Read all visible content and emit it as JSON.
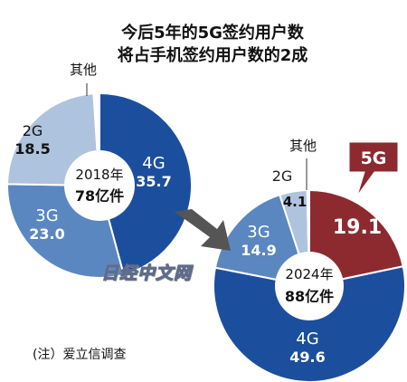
{
  "title": {
    "line1": "今后5年的5G签约用户数",
    "line2": "将占手机签约用户数的2成"
  },
  "watermark": "日经中文网",
  "note": "(注）爱立信调查",
  "colors": {
    "4G": "#1b4f9e",
    "3G": "#5b87c1",
    "2G": "#aec3dd",
    "other": "#ffffff",
    "5G": "#8c2a2f",
    "arrow": "#555555"
  },
  "chart_data": [
    {
      "type": "pie",
      "center_label": [
        "2018年",
        "78亿件"
      ],
      "slices": [
        {
          "label": "4G",
          "value": 35.7,
          "value_text": "35.7"
        },
        {
          "label": "3G",
          "value": 23.0,
          "value_text": "23.0"
        },
        {
          "label": "2G",
          "value": 18.5,
          "value_text": "18.5"
        },
        {
          "label": "其他",
          "value": 0.8,
          "value_text": ""
        }
      ]
    },
    {
      "type": "pie",
      "center_label": [
        "2024年",
        "88亿件"
      ],
      "slices": [
        {
          "label": "5G",
          "value": 19.1,
          "value_text": "19.1"
        },
        {
          "label": "4G",
          "value": 49.6,
          "value_text": "49.6"
        },
        {
          "label": "3G",
          "value": 14.9,
          "value_text": "14.9"
        },
        {
          "label": "2G",
          "value": 4.1,
          "value_text": "4.1"
        },
        {
          "label": "其他",
          "value": 0.3,
          "value_text": ""
        }
      ]
    }
  ]
}
